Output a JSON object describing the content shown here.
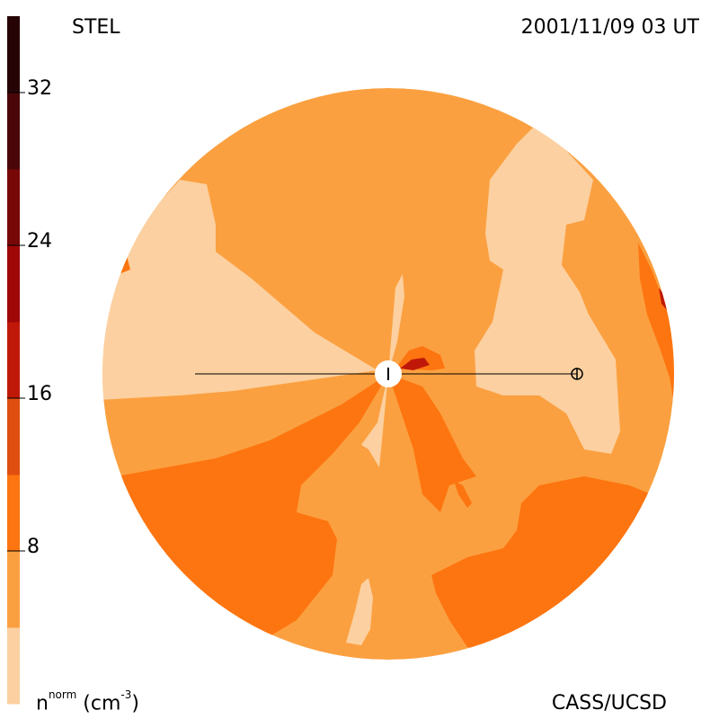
{
  "labels": {
    "top_left": "STEL",
    "top_right": "2001/11/09 03 UT",
    "bottom_right": "CASS/UCSD",
    "colorbar_quantity": "n",
    "colorbar_superscript": "norm",
    "colorbar_unit": " (cm",
    "colorbar_unit_exp": "-3",
    "colorbar_unit_close": ")"
  },
  "chart_data": {
    "type": "heatmap",
    "title": "STEL",
    "timestamp": "2001/11/09 03 UT",
    "colorbar": {
      "label": "n^norm (cm^-3)",
      "range": [
        0,
        36
      ],
      "ticks": [
        8,
        16,
        24,
        32
      ],
      "levels": [
        {
          "from": 0,
          "to": 4,
          "color": "#fcd0a0"
        },
        {
          "from": 4,
          "to": 8,
          "color": "#fba040"
        },
        {
          "from": 8,
          "to": 12,
          "color": "#fd7510"
        },
        {
          "from": 12,
          "to": 16,
          "color": "#e04e10"
        },
        {
          "from": 16,
          "to": 20,
          "color": "#c01808"
        },
        {
          "from": 20,
          "to": 24,
          "color": "#a00808"
        },
        {
          "from": 24,
          "to": 28,
          "color": "#780808"
        },
        {
          "from": 28,
          "to": 32,
          "color": "#4a0608"
        },
        {
          "from": 32,
          "to": 36,
          "color": "#260406"
        }
      ]
    }
  }
}
